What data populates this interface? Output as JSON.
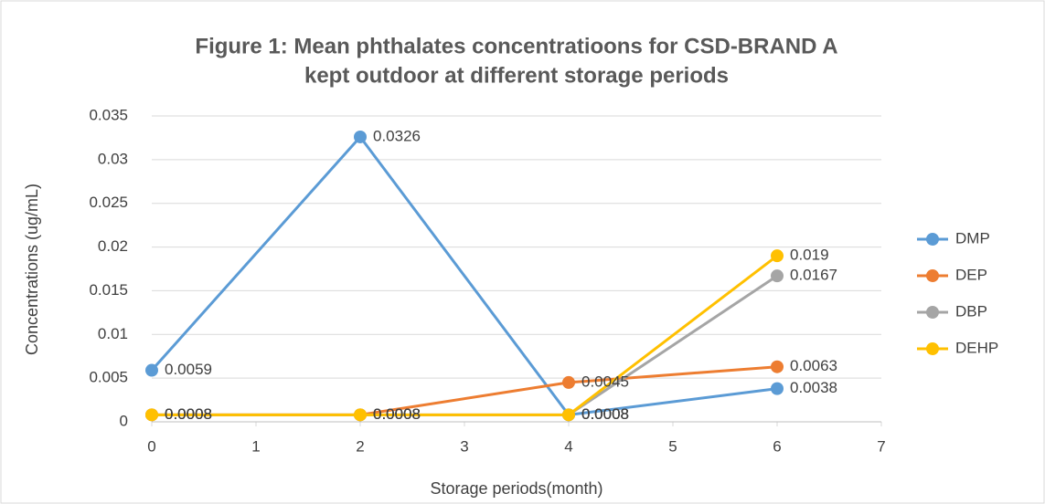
{
  "chart_data": {
    "type": "line",
    "title": [
      "Figure 1: Mean phthalates concentratioons for CSD-BRAND A",
      "kept outdoor at different storage periods"
    ],
    "x_label": "Storage periods(month)",
    "y_label": "Concentrations (ug/mL)",
    "x": [
      0,
      2,
      4,
      6
    ],
    "series": [
      {
        "name": "DMP",
        "color": "#5b9bd5",
        "values": [
          0.0059,
          0.0326,
          0.0008,
          0.0038
        ]
      },
      {
        "name": "DEP",
        "color": "#ed7d31",
        "values": [
          0.0008,
          0.0008,
          0.0045,
          0.0063
        ]
      },
      {
        "name": "DBP",
        "color": "#a5a5a5",
        "values": [
          0.0008,
          0.0008,
          0.0008,
          0.0167
        ]
      },
      {
        "name": "DEHP",
        "color": "#ffc000",
        "values": [
          0.0008,
          0.0008,
          0.0008,
          0.019
        ]
      }
    ],
    "xlim": [
      0,
      7
    ],
    "xticks": [
      0,
      1,
      2,
      3,
      4,
      5,
      6,
      7
    ],
    "ylim": [
      0,
      0.035
    ],
    "yticks": [
      0,
      0.005,
      0.01,
      0.015,
      0.02,
      0.025,
      0.03,
      0.035
    ],
    "grid": true,
    "legend": "right",
    "data_labels": true
  }
}
